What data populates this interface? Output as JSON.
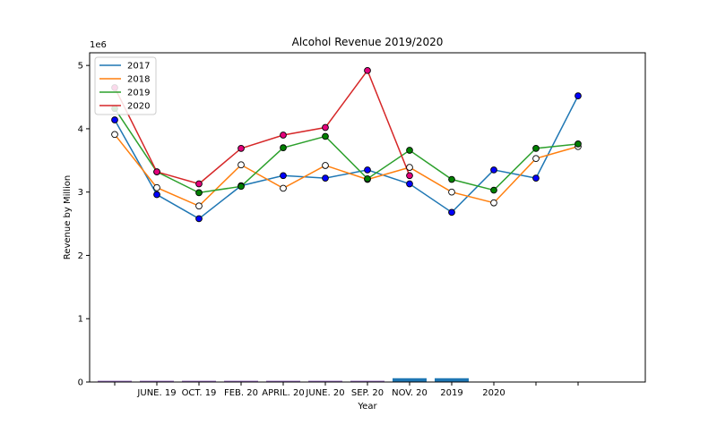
{
  "chart_data": {
    "type": "line",
    "title": "Alcohol Revenue 2019/2020",
    "xlabel": "Year",
    "ylabel": "Revenue by Million",
    "y_offset_label": "1e6",
    "ylim": [
      0,
      5200000
    ],
    "yticks": [
      0,
      1000000,
      2000000,
      3000000,
      4000000,
      5000000
    ],
    "ytick_labels": [
      "0",
      "1",
      "2",
      "3",
      "4",
      "5"
    ],
    "x_tick_labels": [
      "JUNE. 19",
      "OCT. 19",
      "FEB. 20",
      "APRIL. 20",
      "JUNE. 20",
      "SEP. 20",
      "NOV. 20",
      "2019",
      "2020",
      "",
      "",
      ""
    ],
    "grid": false,
    "legend": "upper-left",
    "series": [
      {
        "name": "2017",
        "color": "#1f77b4",
        "marker_color": "#0000ff",
        "values": [
          4140000,
          2960000,
          2580000,
          3100000,
          3260000,
          3220000,
          3350000,
          3130000,
          2680000,
          3350000,
          3220000,
          4520000
        ]
      },
      {
        "name": "2018",
        "color": "#ff7f0e",
        "marker_color": "#ffffff",
        "values": [
          3910000,
          3070000,
          2780000,
          3430000,
          3060000,
          3420000,
          3200000,
          3390000,
          3000000,
          2830000,
          3530000,
          3720000
        ]
      },
      {
        "name": "2019",
        "color": "#2ca02c",
        "marker_color": "#008000",
        "values": [
          4320000,
          3320000,
          2990000,
          3090000,
          3700000,
          3880000,
          3210000,
          3660000,
          3200000,
          3030000,
          3690000,
          3760000
        ]
      },
      {
        "name": "2020",
        "color": "#d62728",
        "marker_color": "#e4007c",
        "values": [
          4650000,
          3320000,
          3130000,
          3690000,
          3900000,
          4020000,
          4920000,
          3260000
        ]
      }
    ],
    "bars": {
      "color_thin": "#9467bd",
      "color_thick": "#1f77b4",
      "values": [
        20000,
        20000,
        20000,
        20000,
        20000,
        20000,
        20000,
        60000,
        60000
      ]
    }
  }
}
